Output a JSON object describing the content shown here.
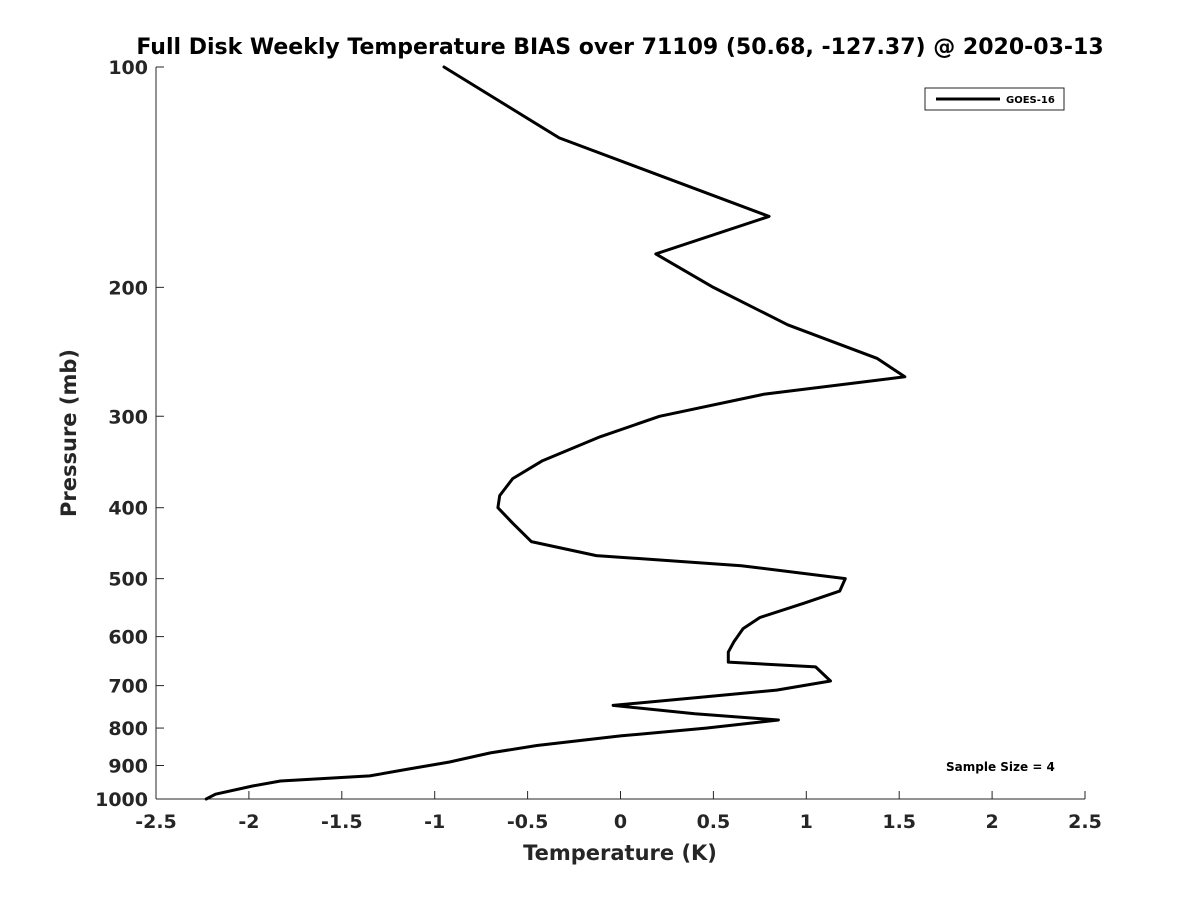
{
  "chart_data": {
    "type": "line",
    "title": "Full Disk Weekly Temperature BIAS over 71109 (50.68, -127.37) @ 2020-03-13",
    "xlabel": "Temperature (K)",
    "ylabel": "Pressure (mb)",
    "xlim": [
      -2.5,
      2.5
    ],
    "ylim": [
      100,
      1000
    ],
    "y_scale": "log",
    "y_reversed": true,
    "grid": false,
    "x_ticks": [
      -2.5,
      -2,
      -1.5,
      -1,
      -0.5,
      0,
      0.5,
      1,
      1.5,
      2,
      2.5
    ],
    "x_tick_labels": [
      "-2.5",
      "-2",
      "-1.5",
      "-1",
      "-0.5",
      "0",
      "0.5",
      "1",
      "1.5",
      "2",
      "2.5"
    ],
    "y_ticks": [
      100,
      200,
      300,
      400,
      500,
      600,
      700,
      800,
      900,
      1000
    ],
    "y_tick_labels": [
      "100",
      "200",
      "300",
      "400",
      "500",
      "600",
      "700",
      "800",
      "900",
      "1000"
    ],
    "legend": {
      "placement": "top-right",
      "entries": [
        "GOES-16"
      ]
    },
    "annotation": "Sample Size = 4",
    "series": [
      {
        "name": "GOES-16",
        "color": "#000000",
        "points": [
          [
            -0.95,
            100
          ],
          [
            -0.33,
            125
          ],
          [
            0.8,
            160
          ],
          [
            0.19,
            180
          ],
          [
            0.5,
            200
          ],
          [
            0.9,
            225
          ],
          [
            1.38,
            250
          ],
          [
            1.53,
            265
          ],
          [
            0.77,
            280
          ],
          [
            0.21,
            300
          ],
          [
            -0.11,
            320
          ],
          [
            -0.42,
            345
          ],
          [
            -0.58,
            365
          ],
          [
            -0.65,
            385
          ],
          [
            -0.66,
            400
          ],
          [
            -0.58,
            420
          ],
          [
            -0.48,
            445
          ],
          [
            -0.13,
            465
          ],
          [
            0.65,
            480
          ],
          [
            1.21,
            500
          ],
          [
            1.18,
            520
          ],
          [
            0.99,
            540
          ],
          [
            0.75,
            565
          ],
          [
            0.66,
            585
          ],
          [
            0.61,
            610
          ],
          [
            0.58,
            630
          ],
          [
            0.58,
            650
          ],
          [
            1.05,
            660
          ],
          [
            1.13,
            690
          ],
          [
            0.84,
            710
          ],
          [
            0.46,
            725
          ],
          [
            -0.04,
            745
          ],
          [
            0.4,
            765
          ],
          [
            0.85,
            780
          ],
          [
            0.46,
            800
          ],
          [
            0.0,
            820
          ],
          [
            -0.45,
            845
          ],
          [
            -0.7,
            865
          ],
          [
            -0.92,
            890
          ],
          [
            -1.14,
            910
          ],
          [
            -1.35,
            930
          ],
          [
            -1.83,
            945
          ],
          [
            -1.98,
            960
          ],
          [
            -2.18,
            985
          ],
          [
            -2.23,
            1000
          ]
        ]
      }
    ]
  }
}
